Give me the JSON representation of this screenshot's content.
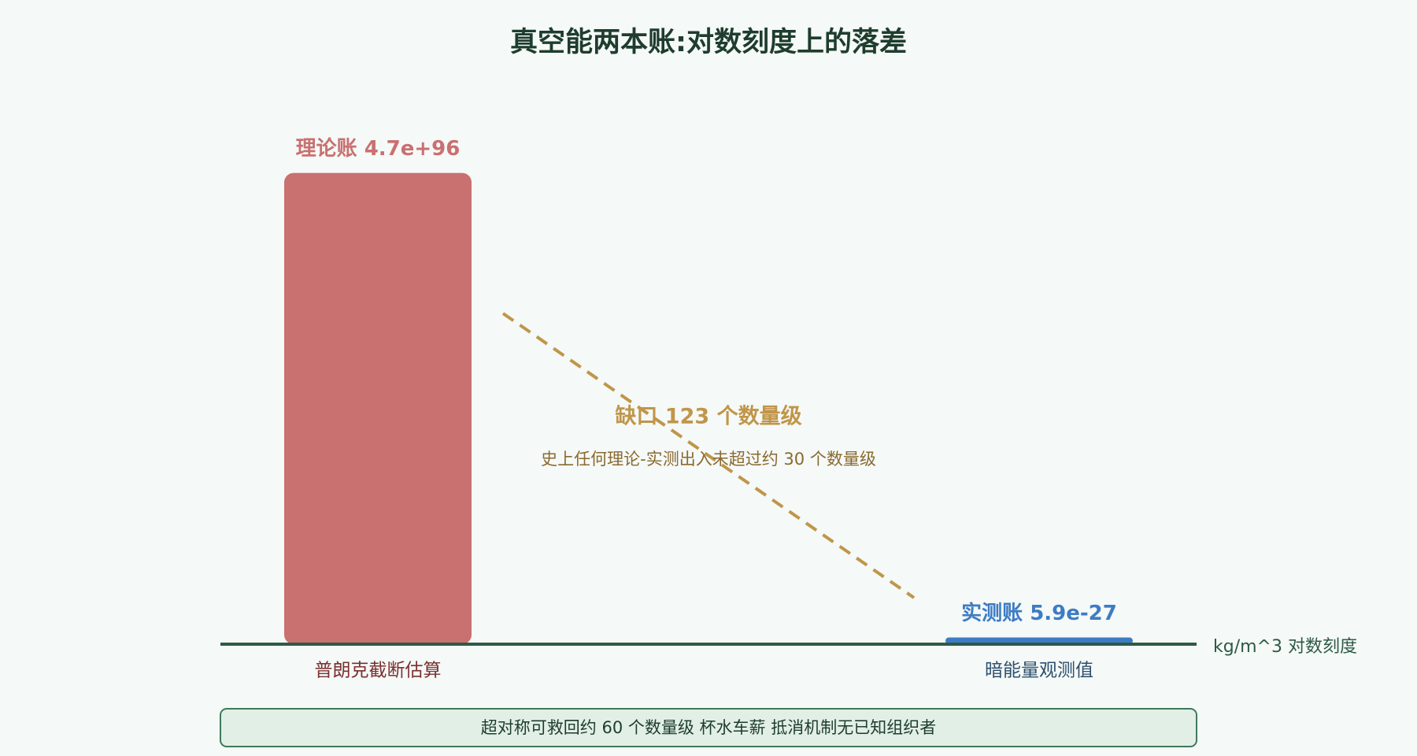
{
  "chart_data": {
    "type": "bar",
    "title": "真空能两本账:对数刻度上的落差",
    "categories": [
      "普朗克截断估算",
      "暗能量观测值"
    ],
    "values": [
      4.7e+96,
      5.9e-27
    ],
    "value_labels": [
      "理论账 4.7e+96",
      "实测账 5.9e-27"
    ],
    "colors": [
      "#c97070",
      "#3d7cc4"
    ],
    "y_label": "kg/m^3 对数刻度",
    "log_scale": true,
    "ylim": [
      1e-28,
      1e+97
    ],
    "annotation": "缺口 123 个数量级",
    "annotation_note": "史上任何理论-实测出入未超过约 30 个数量级",
    "footer": "超对称可救回约 60 个数量级 杯水车薪 抵消机制无已知组织者"
  }
}
